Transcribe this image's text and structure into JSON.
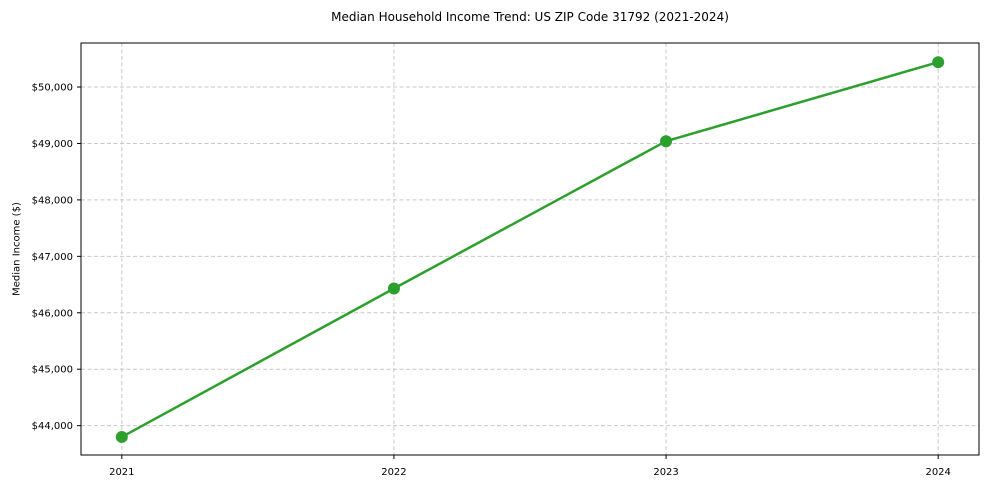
{
  "chart_data": {
    "type": "line",
    "title": "Median Household Income Trend: US ZIP Code 31792 (2021-2024)",
    "xlabel": "",
    "ylabel": "Median Income ($)",
    "x": [
      2021,
      2022,
      2023,
      2024
    ],
    "values": [
      43800,
      46430,
      49040,
      50440
    ],
    "xticks": [
      {
        "value": 2021,
        "label": "2021"
      },
      {
        "value": 2022,
        "label": "2022"
      },
      {
        "value": 2023,
        "label": "2023"
      },
      {
        "value": 2024,
        "label": "2024"
      }
    ],
    "yticks": [
      {
        "value": 44000,
        "label": "$44,000"
      },
      {
        "value": 45000,
        "label": "$45,000"
      },
      {
        "value": 46000,
        "label": "$46,000"
      },
      {
        "value": 47000,
        "label": "$47,000"
      },
      {
        "value": 48000,
        "label": "$48,000"
      },
      {
        "value": 49000,
        "label": "$49,000"
      },
      {
        "value": 50000,
        "label": "$50,000"
      }
    ],
    "xlim": [
      2020.85,
      2024.15
    ],
    "ylim": [
      43480,
      50780
    ],
    "grid": true,
    "grid_style": "dashed",
    "legend": "none",
    "marker": "circle",
    "colors": {
      "line": "#2ca02c",
      "marker": "#2ca02c",
      "grid": "#c9c9c9",
      "axis": "#000000",
      "text": "#000000",
      "background": "#ffffff"
    }
  }
}
